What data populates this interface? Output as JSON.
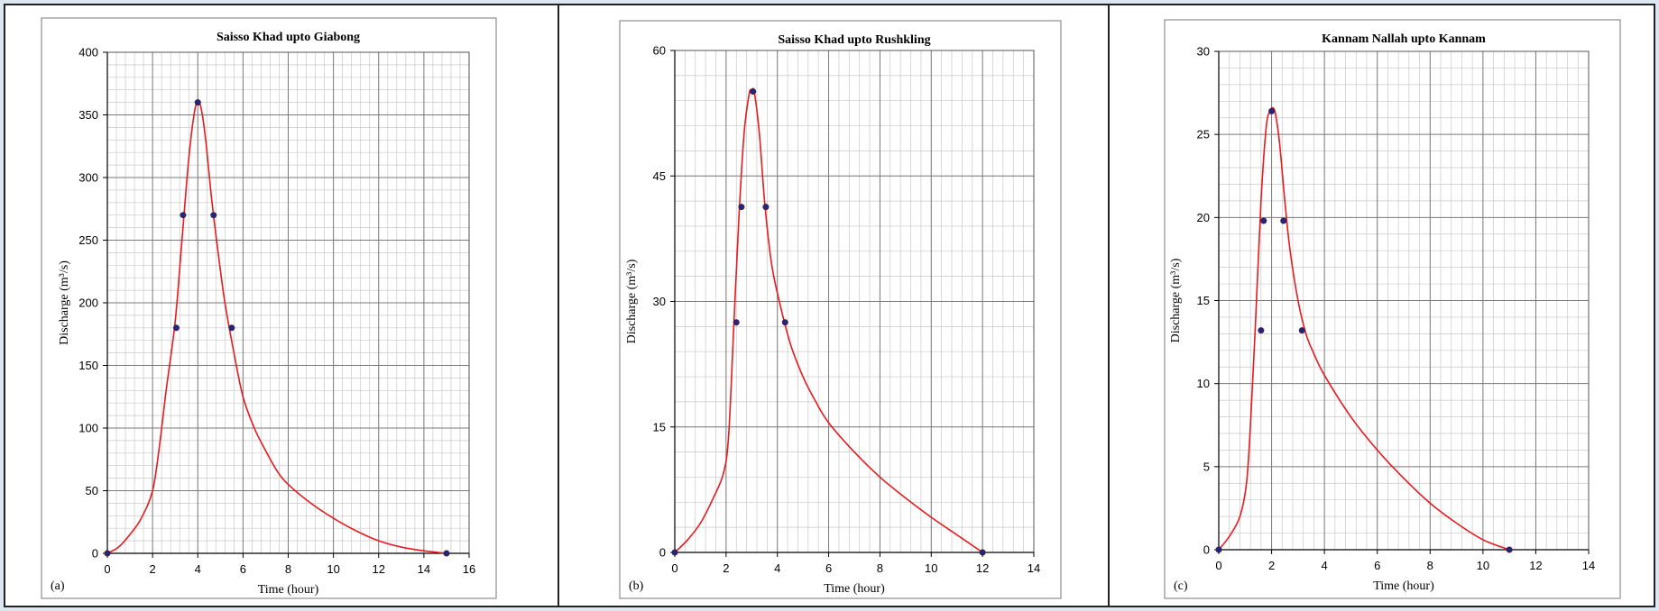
{
  "chart_data": [
    {
      "type": "line",
      "panel_label": "(a)",
      "title": "Saisso Khad upto  Giabong",
      "xlabel": "Time (hour)",
      "ylabel": "Discharge (m³/s)",
      "xlim": [
        0,
        16
      ],
      "ylim": [
        0,
        400
      ],
      "xticks": [
        0,
        2,
        4,
        6,
        8,
        10,
        12,
        14,
        16
      ],
      "yticks": [
        0,
        50,
        100,
        150,
        200,
        250,
        300,
        350,
        400
      ],
      "grid": true,
      "colors": {
        "curve": "#e8191f",
        "points": "#1b2a80"
      },
      "series": [
        {
          "kind": "curve",
          "x": [
            0,
            0.5,
            1,
            1.5,
            2,
            2.3,
            2.6,
            3.0,
            3.3,
            3.6,
            3.85,
            4.0,
            4.15,
            4.35,
            4.6,
            4.9,
            5.2,
            5.6,
            6.0,
            6.5,
            7.0,
            7.5,
            8.0,
            9.0,
            10.0,
            11.0,
            12.0,
            13.0,
            14.0,
            15.0
          ],
          "y": [
            0,
            5,
            15,
            28,
            50,
            85,
            130,
            185,
            250,
            315,
            352,
            360,
            355,
            330,
            285,
            240,
            200,
            160,
            125,
            100,
            82,
            66,
            55,
            40,
            28,
            18,
            10,
            5,
            2,
            0
          ]
        },
        {
          "kind": "points",
          "x": [
            0,
            3.05,
            3.35,
            4.0,
            4.7,
            5.5,
            15.0
          ],
          "y": [
            0,
            180,
            270,
            360,
            270,
            180,
            0
          ]
        }
      ]
    },
    {
      "type": "line",
      "panel_label": "(b)",
      "title": "Saisso Khad upto  Rushkling",
      "xlabel": "Time (hour)",
      "ylabel": "Discharge (m³/s)",
      "xlim": [
        0,
        14
      ],
      "ylim": [
        0,
        60
      ],
      "xticks": [
        0,
        2,
        4,
        6,
        8,
        10,
        12,
        14
      ],
      "yticks": [
        0,
        15,
        30,
        45,
        60
      ],
      "grid": true,
      "colors": {
        "curve": "#e8191f",
        "points": "#1b2a80"
      },
      "series": [
        {
          "kind": "curve",
          "x": [
            0,
            0.5,
            1.0,
            1.5,
            1.9,
            2.1,
            2.3,
            2.5,
            2.7,
            2.9,
            3.0,
            3.1,
            3.3,
            3.5,
            3.75,
            4.0,
            4.5,
            5.0,
            5.5,
            6.0,
            7.0,
            8.0,
            9.0,
            10.0,
            11.0,
            12.0
          ],
          "y": [
            0,
            1.5,
            3.5,
            6.5,
            9.5,
            14,
            27,
            40,
            50,
            54.8,
            55.2,
            55,
            50,
            42,
            35,
            31,
            25,
            21,
            18,
            15.5,
            12,
            9,
            6.5,
            4.2,
            2.1,
            0
          ]
        },
        {
          "kind": "points",
          "x": [
            0,
            2.4,
            2.6,
            3.05,
            3.55,
            4.3,
            12.0
          ],
          "y": [
            0,
            27.5,
            41.3,
            55.1,
            41.3,
            27.5,
            0
          ]
        }
      ]
    },
    {
      "type": "line",
      "panel_label": "(c)",
      "title": "Kannam Nallah upto Kannam",
      "xlabel": "Time (hour)",
      "ylabel": "Discharge (m³/s)",
      "xlim": [
        0,
        14
      ],
      "ylim": [
        0,
        30
      ],
      "xticks": [
        0,
        2,
        4,
        6,
        8,
        10,
        12,
        14
      ],
      "yticks": [
        0,
        5,
        10,
        15,
        20,
        25,
        30
      ],
      "grid": true,
      "colors": {
        "curve": "#e8191f",
        "points": "#1b2a80"
      },
      "series": [
        {
          "kind": "curve",
          "x": [
            0,
            0.4,
            0.8,
            1.05,
            1.2,
            1.4,
            1.6,
            1.8,
            1.95,
            2.05,
            2.15,
            2.3,
            2.5,
            2.7,
            3.0,
            3.3,
            3.6,
            4.0,
            5.0,
            6.0,
            7.0,
            8.0,
            9.0,
            10.0,
            11.0
          ],
          "y": [
            0,
            0.8,
            2.0,
            4.0,
            7.5,
            14,
            21,
            25.5,
            26.4,
            26.6,
            26.2,
            24.5,
            21,
            18,
            15,
            13,
            11.8,
            10.5,
            8,
            6,
            4.3,
            2.8,
            1.6,
            0.6,
            0
          ]
        },
        {
          "kind": "points",
          "x": [
            0,
            1.6,
            1.7,
            2.0,
            2.45,
            3.15,
            11.0
          ],
          "y": [
            0,
            13.2,
            19.8,
            26.4,
            19.8,
            13.2,
            0
          ]
        }
      ]
    }
  ]
}
